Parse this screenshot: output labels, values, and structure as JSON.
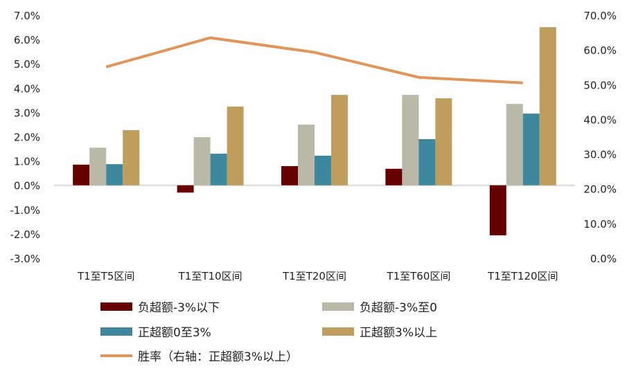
{
  "chart_data": {
    "type": "bar",
    "categories": [
      "T1至T5区间",
      "T1至T10区间",
      "T1至T20区间",
      "T1至T60区间",
      "T1至T120区间"
    ],
    "left_axis": {
      "ylim": [
        -3,
        7
      ],
      "ticks": [
        "-3.0%",
        "-2.0%",
        "-1.0%",
        "0.0%",
        "1.0%",
        "2.0%",
        "3.0%",
        "4.0%",
        "5.0%",
        "6.0%",
        "7.0%"
      ]
    },
    "right_axis": {
      "ylim": [
        0,
        70
      ],
      "ticks": [
        "0.0%",
        "10.0%",
        "20.0%",
        "30.0%",
        "40.0%",
        "50.0%",
        "60.0%",
        "70.0%"
      ]
    },
    "series": [
      {
        "name": "负超额-3%以下",
        "type": "bar",
        "axis": "left",
        "color": "#660000",
        "values": [
          0.85,
          -0.3,
          0.79,
          0.68,
          -2.06
        ]
      },
      {
        "name": "负超额-3%至0",
        "type": "bar",
        "axis": "left",
        "color": "#BAB8A6",
        "values": [
          1.55,
          1.98,
          2.5,
          3.72,
          3.35
        ]
      },
      {
        "name": "正超额0至3%",
        "type": "bar",
        "axis": "left",
        "color": "#3D889D",
        "values": [
          0.87,
          1.3,
          1.22,
          1.9,
          2.95
        ]
      },
      {
        "name": "正超额3%以上",
        "type": "bar",
        "axis": "left",
        "color": "#BF9D5D",
        "values": [
          2.27,
          3.24,
          3.72,
          3.58,
          6.51
        ]
      },
      {
        "name": "胜率（右轴：正超额3%以上）",
        "type": "line",
        "axis": "right",
        "color": "#E0965A",
        "values": [
          55.1,
          63.5,
          59.3,
          52.1,
          50.5
        ]
      }
    ],
    "grid": false,
    "legend_placement": "bottom"
  }
}
